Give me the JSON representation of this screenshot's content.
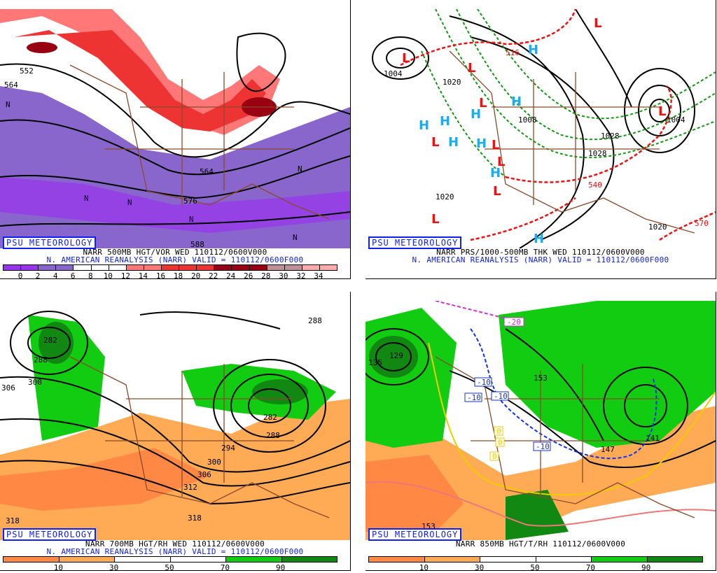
{
  "brand": "PSU METEOROLOGY",
  "panels": [
    {
      "title": "NARR 500MB HGT/VOR WED 110112/0600V000",
      "subtitle": "N. AMERICAN REANALYSIS (NARR) VALID = 110112/0600F000",
      "colorbar": {
        "colors": [
          "#9a33ee",
          "#9a33ee",
          "#8866cc",
          "#8866cc",
          "#ffffff",
          "#ffffff",
          "#ffffff",
          "#ff7777",
          "#ff7777",
          "#ee3333",
          "#ee3333",
          "#ee3333",
          "#990011",
          "#990011",
          "#990011",
          "#c09098",
          "#c09098",
          "#ffaaaa",
          "#ffaaaa"
        ],
        "ticks": [
          "0",
          "2",
          "4",
          "6",
          "8",
          "10",
          "12",
          "14",
          "16",
          "18",
          "20",
          "22",
          "24",
          "26",
          "28",
          "30",
          "32",
          "34"
        ]
      },
      "contour_labels": [
        "552",
        "564",
        "576",
        "588",
        "564"
      ],
      "markers": [
        "N",
        "N",
        "N",
        "N",
        "N",
        "N"
      ]
    },
    {
      "title": "NARR PRS/1000-500MB THK WED 110112/0600V000",
      "subtitle": "N. AMERICAN REANALYSIS (NARR) VALID = 110112/0600F000",
      "contour_labels": [
        "1004",
        "1020",
        "1020",
        "1008",
        "1028",
        "1028",
        "1004",
        "1020",
        "516",
        "540",
        "570"
      ],
      "highs": [
        "H",
        "H",
        "H",
        "H",
        "H",
        "H",
        "H",
        "H",
        "H"
      ],
      "lows": [
        "L",
        "L",
        "L",
        "L",
        "L",
        "L",
        "L",
        "L",
        "L",
        "L"
      ],
      "colors": {
        "high": "#22aaee",
        "low": "#ee1111",
        "thickness_cold": "#119911",
        "thickness_warm": "#ee1111"
      }
    },
    {
      "title": "NARR 700MB HGT/RH WED 110112/0600V000",
      "subtitle": "N. AMERICAN REANALYSIS (NARR) VALID = 110112/0600F000",
      "colorbar": {
        "colors": [
          "#ff8844",
          "#ffaa55",
          "#ffffff",
          "#ffffff",
          "#11cc11",
          "#118811"
        ],
        "ticks": [
          "10",
          "30",
          "50",
          "70",
          "90"
        ]
      },
      "contour_labels": [
        "282",
        "288",
        "306",
        "300",
        "294",
        "300",
        "306",
        "312",
        "318",
        "318",
        "282",
        "288",
        "288"
      ]
    },
    {
      "title": "NARR 850MB HGT/T/RH 110112/0600V000",
      "colorbar": {
        "colors": [
          "#ff8844",
          "#ffaa55",
          "#ffffff",
          "#ffffff",
          "#11cc11",
          "#118811"
        ],
        "ticks": [
          "10",
          "30",
          "50",
          "70",
          "90"
        ]
      },
      "contour_labels": [
        "135",
        "129",
        "153",
        "153",
        "147",
        "141"
      ],
      "temp_labels": [
        "-20",
        "-10",
        "-10",
        "-10",
        "-10",
        "0",
        "0",
        "0"
      ]
    }
  ]
}
